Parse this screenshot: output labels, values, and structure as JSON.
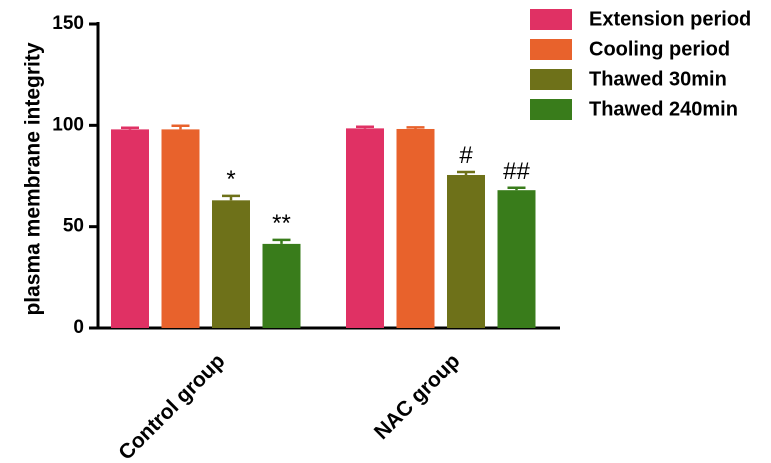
{
  "chart_data": {
    "type": "bar",
    "categories": [
      "Control group",
      "NAC group"
    ],
    "series": [
      {
        "name": "Extension period",
        "color": "#E03164",
        "values": [
          98,
          98.5
        ],
        "errors": [
          0.8,
          0.8
        ],
        "annotations": [
          "",
          ""
        ]
      },
      {
        "name": "Cooling period",
        "color": "#E8622C",
        "values": [
          98,
          98.2
        ],
        "errors": [
          1.8,
          0.8
        ],
        "annotations": [
          "",
          ""
        ]
      },
      {
        "name": "Thawed 30min",
        "color": "#6E7119",
        "values": [
          63,
          75.5
        ],
        "errors": [
          2.2,
          1.5
        ],
        "annotations": [
          "*",
          "#"
        ]
      },
      {
        "name": "Thawed 240min",
        "color": "#397C1B",
        "values": [
          41.5,
          68
        ],
        "errors": [
          2.0,
          1.2
        ],
        "annotations": [
          "**",
          "##"
        ]
      }
    ],
    "ylabel": "plasma membrane integrity",
    "xlabel": "",
    "ylim": [
      0,
      150
    ],
    "yticks": [
      0,
      50,
      100,
      150
    ],
    "grid": false,
    "legend_position": "top-right"
  }
}
